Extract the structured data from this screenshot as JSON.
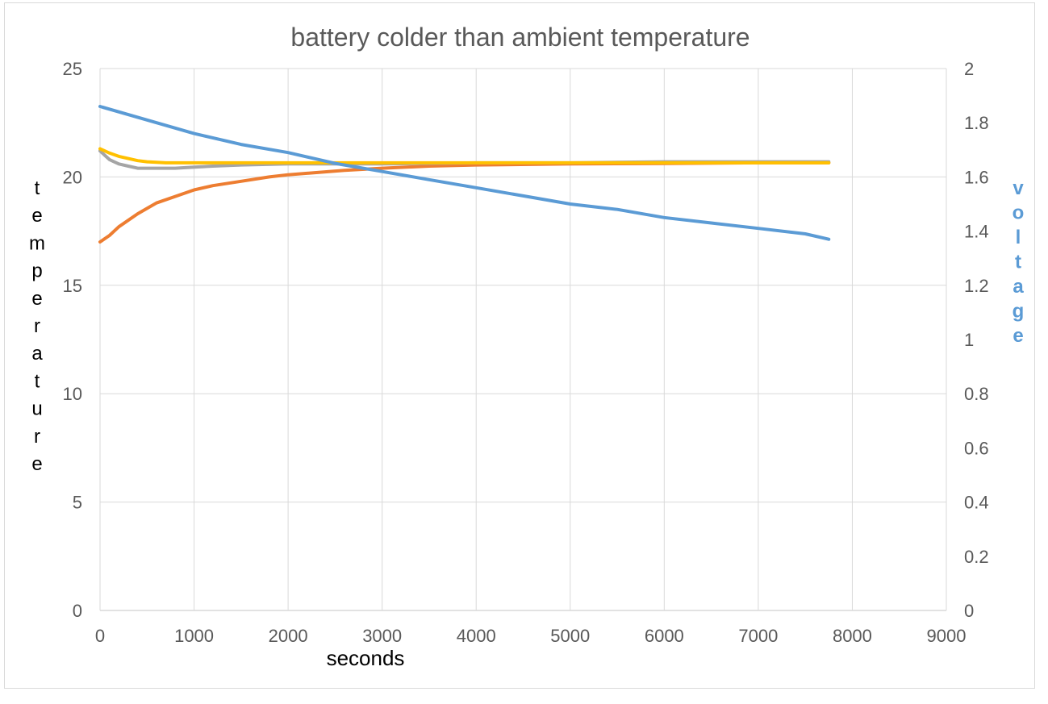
{
  "chart_data": {
    "type": "line",
    "title": "battery colder than ambient temperature",
    "xlabel": "seconds",
    "ylabel_left": "temperature",
    "ylabel_right": "voltage",
    "xlim": [
      0,
      9000
    ],
    "ylim_left": [
      0,
      25
    ],
    "ylim_right": [
      0,
      2
    ],
    "x_ticks": [
      "0",
      "1000",
      "2000",
      "3000",
      "4000",
      "5000",
      "6000",
      "7000",
      "8000",
      "9000"
    ],
    "y_left_ticks": [
      "0",
      "5",
      "10",
      "15",
      "20",
      "25"
    ],
    "y_right_ticks": [
      "0",
      "0.2",
      "0.4",
      "0.6",
      "0.8",
      "1",
      "1.2",
      "1.4",
      "1.6",
      "1.8",
      "2"
    ],
    "grid": true,
    "legend": "none",
    "colors": {
      "voltage": "#5b9bd5",
      "battery_temp": "#ed7d31",
      "gray_temp": "#a5a5a5",
      "yellow_temp": "#ffc000",
      "ylabel_right": "#5b9bd5",
      "grid": "#d9d9d9"
    },
    "series": [
      {
        "axis": "left",
        "color": "#ed7d31",
        "x": [
          0,
          100,
          200,
          400,
          600,
          800,
          1000,
          1200,
          1500,
          1800,
          2000,
          2300,
          2600,
          3000,
          3500,
          4000,
          5000,
          6000,
          7000,
          7750
        ],
        "y": [
          17.0,
          17.3,
          17.7,
          18.3,
          18.8,
          19.1,
          19.4,
          19.6,
          19.8,
          20.0,
          20.1,
          20.2,
          20.3,
          20.4,
          20.5,
          20.55,
          20.6,
          20.62,
          20.65,
          20.65
        ]
      },
      {
        "axis": "left",
        "color": "#a5a5a5",
        "x": [
          0,
          50,
          100,
          200,
          300,
          400,
          600,
          800,
          1000,
          1200,
          1500,
          2000,
          2500,
          3000,
          4000,
          5000,
          6000,
          7000,
          7750
        ],
        "y": [
          21.2,
          21.0,
          20.8,
          20.6,
          20.5,
          20.4,
          20.4,
          20.4,
          20.45,
          20.5,
          20.55,
          20.6,
          20.6,
          20.6,
          20.65,
          20.65,
          20.7,
          20.7,
          20.7
        ]
      },
      {
        "axis": "left",
        "color": "#ffc000",
        "x": [
          0,
          100,
          200,
          300,
          400,
          500,
          700,
          1000,
          1500,
          2000,
          3000,
          4000,
          5000,
          6000,
          7000,
          7750
        ],
        "y": [
          21.3,
          21.1,
          20.95,
          20.85,
          20.75,
          20.7,
          20.65,
          20.65,
          20.65,
          20.65,
          20.65,
          20.65,
          20.65,
          20.65,
          20.65,
          20.65
        ]
      },
      {
        "axis": "right",
        "color": "#5b9bd5",
        "x": [
          0,
          500,
          1000,
          1500,
          2000,
          2500,
          3000,
          3500,
          4000,
          4500,
          5000,
          5500,
          6000,
          6500,
          7000,
          7500,
          7750
        ],
        "y": [
          1.86,
          1.81,
          1.76,
          1.72,
          1.69,
          1.65,
          1.62,
          1.59,
          1.56,
          1.53,
          1.5,
          1.48,
          1.45,
          1.43,
          1.41,
          1.39,
          1.37
        ]
      }
    ]
  }
}
